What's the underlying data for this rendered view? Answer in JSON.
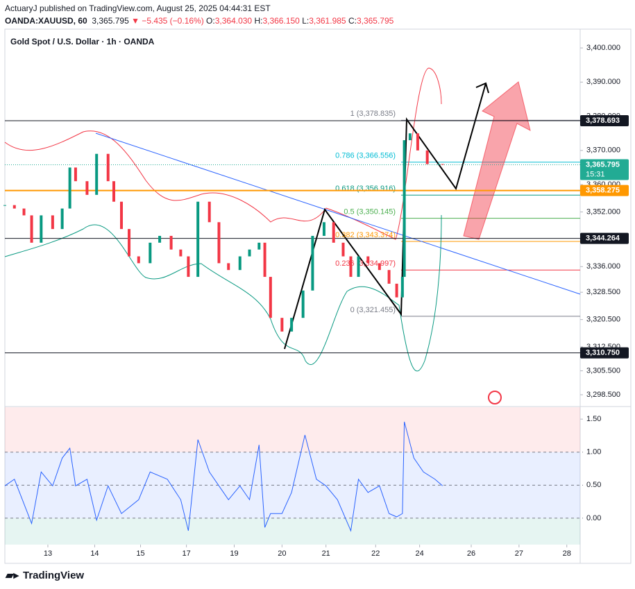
{
  "header": {
    "publisher": "ActuaryJ published on TradingView.com, August 25, 2025 04:44:31 EST",
    "symbol": "OANDA:XAUUSD, 60",
    "last": "3,365.795",
    "change": "▼ −5.435 (−0.16%)",
    "o_key": "O:",
    "o": "3,364.030",
    "h_key": "H:",
    "h": "3,366.150",
    "l_key": "L:",
    "l": "3,361.985",
    "c_key": "C:",
    "c": "3,365.795"
  },
  "footer": {
    "brand": "TradingView"
  },
  "chart_data": [
    {
      "type": "candlestick",
      "title": "Gold Spot / U.S. Dollar · 1h · OANDA",
      "x": [
        0,
        5,
        10,
        14,
        19,
        25,
        30,
        34,
        37,
        43,
        48,
        54,
        57,
        61,
        65,
        70,
        76,
        81,
        87,
        92,
        96,
        101,
        107,
        112,
        117,
        123,
        128,
        133,
        136,
        139,
        145,
        150,
        156,
        161,
        167,
        172,
        177,
        181,
        185,
        190,
        196,
        201,
        205,
        208,
        209,
        212,
        216,
        221,
        227,
        229
      ],
      "series": [
        {
          "name": "XAUUSD",
          "color": "#089981",
          "down_color": "#f23645",
          "values": [
            3354,
            3353,
            3351,
            3343,
            3351,
            3347,
            3353,
            3365,
            3361,
            3357,
            3369,
            3361,
            3355,
            3347,
            3339,
            3337,
            3343,
            3345,
            3341,
            3339,
            3333,
            3355,
            3349,
            3337,
            3335,
            3339,
            3341,
            3343,
            3333,
            3321,
            3317,
            3321,
            3329,
            3345,
            3349,
            3343,
            3339,
            3333,
            3339,
            3337,
            3335,
            3331,
            3327,
            3333,
            3373,
            3375,
            3370,
            3366,
            3366,
            3365.795
          ]
        }
      ],
      "xlim": [
        0,
        301
      ],
      "xticks": [
        {
          "value": 22.5,
          "label": "13"
        },
        {
          "value": 47,
          "label": "14"
        },
        {
          "value": 71,
          "label": "15"
        },
        {
          "value": 95,
          "label": "17"
        },
        {
          "value": 120,
          "label": "19"
        },
        {
          "value": 145,
          "label": "20"
        },
        {
          "value": 168,
          "label": "21"
        },
        {
          "value": 194,
          "label": "22"
        },
        {
          "value": 217,
          "label": "24"
        },
        {
          "value": 244,
          "label": "26"
        },
        {
          "value": 269,
          "label": "27"
        },
        {
          "value": 294,
          "label": "28"
        }
      ],
      "ylim": [
        3295.25,
        3405.5
      ],
      "yticks": [
        {
          "value": 3400,
          "label": "3,400.000"
        },
        {
          "value": 3390,
          "label": "3,390.000"
        },
        {
          "value": 3380,
          "label": "3,380.000"
        },
        {
          "value": 3370,
          "label": "3,370.000"
        },
        {
          "value": 3360,
          "label": "3,360.000"
        },
        {
          "value": 3352,
          "label": "3,352.000"
        },
        {
          "value": 3336,
          "label": "3,336.000"
        },
        {
          "value": 3328.5,
          "label": "3,328.500"
        },
        {
          "value": 3320.5,
          "label": "3,320.500"
        },
        {
          "value": 3312.5,
          "label": "3,312.500"
        },
        {
          "value": 3305.5,
          "label": "3,305.500"
        },
        {
          "value": 3298.5,
          "label": "3,298.500"
        }
      ],
      "price_lines": [
        {
          "value": 3378.693,
          "label": "3,378.693",
          "color": "#131722"
        },
        {
          "value": 3358.275,
          "label": "3,358.275",
          "color": "#ff9800"
        },
        {
          "value": 3344.264,
          "label": "3,344.264",
          "color": "#131722"
        },
        {
          "value": 3310.75,
          "label": "3,310.750",
          "color": "#131722"
        }
      ],
      "last_price": {
        "value": 3365.795,
        "label": "3,365.795",
        "countdown": "15:31",
        "color": "#22ab94"
      },
      "fib_levels": [
        {
          "value": 3378.835,
          "label": "1 (3,378.835)",
          "color": "#787b86"
        },
        {
          "value": 3366.556,
          "label": "0.786 (3,366.556)",
          "color": "#00bcd4"
        },
        {
          "value": 3356.916,
          "label": "0.618 (3,356.916)",
          "color": "#089981"
        },
        {
          "value": 3350.145,
          "label": "0.5 (3,350.145)",
          "color": "#4caf50"
        },
        {
          "value": 3343.374,
          "label": "0.382 (3,343.374)",
          "color": "#ff9800"
        },
        {
          "value": 3334.997,
          "label": "0.236 (3,334.997)",
          "color": "#f23645"
        },
        {
          "value": 3321.455,
          "label": "0 (3,321.455)",
          "color": "#787b86"
        }
      ]
    },
    {
      "type": "line",
      "x": [
        0,
        5,
        14,
        19,
        25,
        30,
        34,
        37,
        43,
        48,
        54,
        61,
        70,
        76,
        85,
        92,
        96,
        101,
        107,
        112,
        117,
        123,
        128,
        133,
        136,
        139,
        145,
        150,
        157,
        163,
        168,
        174,
        181,
        185,
        190,
        196,
        201,
        205,
        208,
        209,
        214,
        219,
        225,
        229
      ],
      "series": [
        {
          "name": "Indicator",
          "color": "#2962ff",
          "values": [
            0.49,
            0.59,
            -0.08,
            0.7,
            0.49,
            0.91,
            1.06,
            0.49,
            0.59,
            -0.03,
            0.49,
            0.07,
            0.28,
            0.7,
            0.59,
            0.28,
            -0.19,
            1.19,
            0.7,
            0.49,
            0.28,
            0.49,
            0.28,
            1.11,
            -0.14,
            0.07,
            0.07,
            0.39,
            1.26,
            0.59,
            0.49,
            0.28,
            -0.19,
            0.59,
            0.39,
            0.49,
            0.07,
            0.02,
            0.07,
            1.46,
            0.91,
            0.7,
            0.59,
            0.49
          ]
        }
      ],
      "xlim": [
        0,
        301
      ],
      "ylim": [
        -0.4,
        1.68
      ],
      "yticks": [
        {
          "value": 1.5,
          "label": "1.50"
        },
        {
          "value": 1,
          "label": "1.00"
        },
        {
          "value": 0.5,
          "label": "0.50"
        },
        {
          "value": 0,
          "label": "0.00"
        }
      ]
    }
  ]
}
